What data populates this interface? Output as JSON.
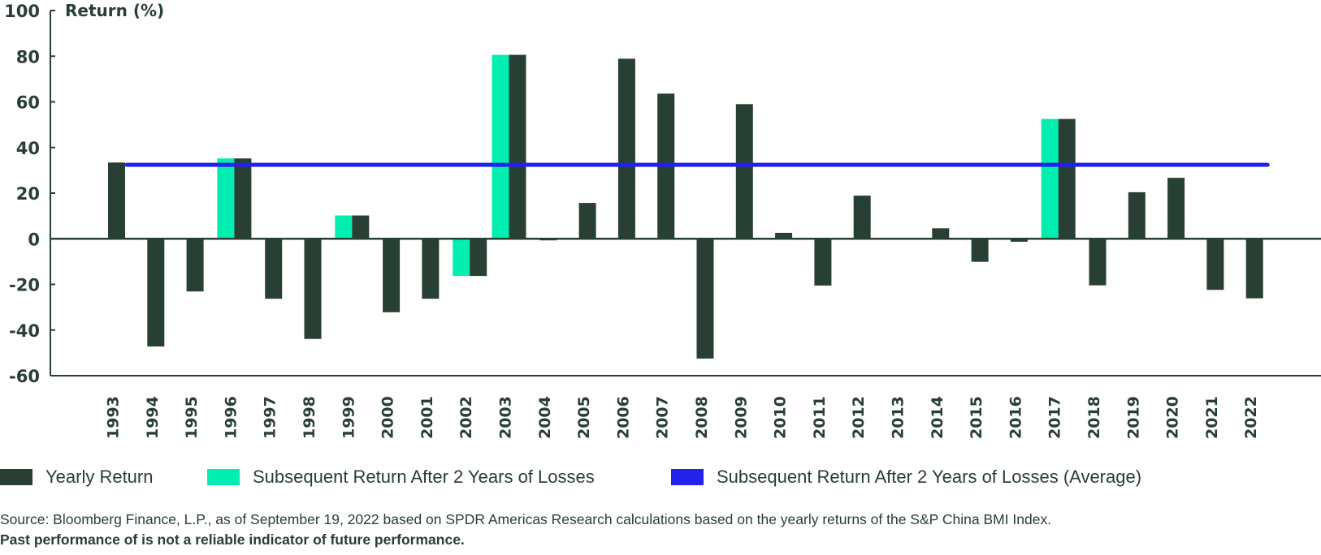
{
  "colors": {
    "yearly": "#283f33",
    "subsequent": "#00efb0",
    "average": "#2222e8",
    "axis": "#283f33"
  },
  "chart_data": {
    "type": "bar",
    "title": "",
    "ylabel": "Return (%)",
    "xlabel": "",
    "ylim": [
      -60,
      100
    ],
    "yticks": [
      "100",
      "80",
      "60",
      "40",
      "20",
      "0",
      "-20",
      "-40",
      "-60"
    ],
    "ytick_values": [
      100,
      80,
      60,
      40,
      20,
      0,
      -20,
      -40,
      -60
    ],
    "grid": false,
    "categories": [
      "1993",
      "1994",
      "1995",
      "1996",
      "1997",
      "1998",
      "1999",
      "2000",
      "2001",
      "2002",
      "2003",
      "2004",
      "2005",
      "2006",
      "2007",
      "2008",
      "2009",
      "2010",
      "2011",
      "2012",
      "2013",
      "2014",
      "2015",
      "2016",
      "2017",
      "2018",
      "2019",
      "2020",
      "2021",
      "2022"
    ],
    "series": [
      {
        "name": "Yearly Return",
        "type": "bar",
        "values": [
          33.4,
          -47.2,
          -23.1,
          35.2,
          -26.3,
          -43.9,
          10.2,
          -32.2,
          -26.3,
          -16.3,
          80.6,
          -0.7,
          15.7,
          78.9,
          63.6,
          -52.5,
          59.0,
          2.6,
          -20.5,
          18.9,
          0.3,
          4.6,
          -10.1,
          -1.3,
          52.5,
          -20.4,
          20.4,
          26.7,
          -22.4,
          -26.1
        ]
      },
      {
        "name": "Subsequent Return After 2 Years of Losses",
        "type": "bar",
        "values": [
          null,
          null,
          null,
          35.2,
          null,
          null,
          10.2,
          null,
          null,
          -16.3,
          80.6,
          null,
          null,
          null,
          null,
          null,
          null,
          null,
          null,
          null,
          null,
          null,
          null,
          null,
          52.5,
          null,
          null,
          null,
          null,
          null
        ]
      },
      {
        "name": "Subsequent Return After 2 Years of Losses (Average)",
        "type": "line",
        "value": 32.4,
        "from": "1993",
        "to": "2022"
      }
    ],
    "legend": "bottom-left"
  },
  "legend": {
    "items": [
      {
        "label": "Yearly Return"
      },
      {
        "label": "Subsequent Return After 2 Years of Losses"
      },
      {
        "label": "Subsequent Return After 2 Years of Losses (Average)"
      }
    ]
  },
  "footnotes": {
    "source": "Source: Bloomberg Finance, L.P., as of September 19, 2022 based on SPDR Americas Research calculations based on the yearly returns of the S&P China BMI Index.",
    "disclaimer": "Past performance of is not a reliable indicator of future performance."
  }
}
